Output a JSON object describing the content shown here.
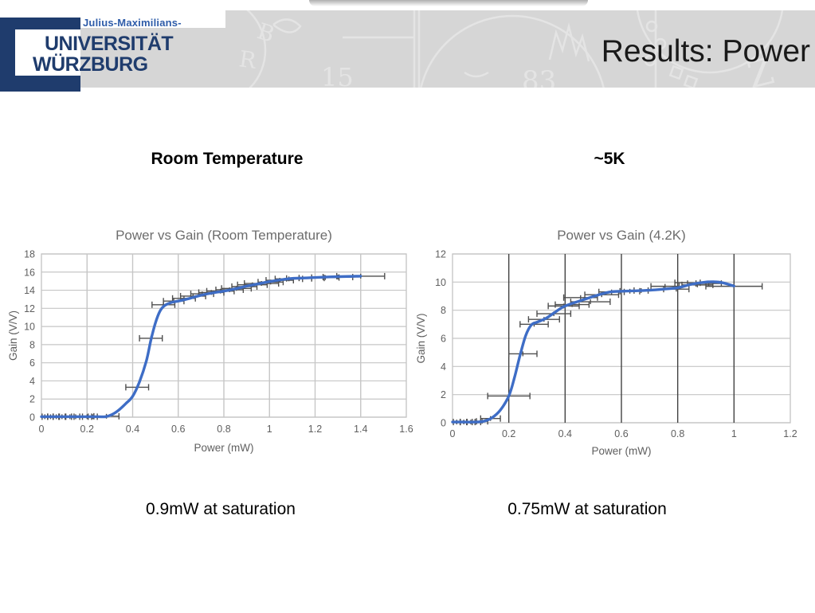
{
  "slide": {
    "title": "Results: Power",
    "logo": {
      "pretitle": "Julius-Maximilians-",
      "line1": "UNIVERSITÄT",
      "line2": "WÜRZBURG"
    },
    "watermark": {
      "num_left": "15",
      "num_right": "83",
      "letters": [
        "B",
        "R",
        "Z"
      ]
    },
    "left_subtitle": "Room Temperature",
    "right_subtitle": "~5K",
    "left_caption": "0.9mW at saturation",
    "right_caption": "0.75mW at saturation",
    "colors": {
      "logo_navy": "#1f3c6d",
      "logo_blue": "#2e5ca9",
      "band_gray": "#d6d6d6",
      "watermark_gray": "#e4e4e4",
      "title_black": "#1a1a1a",
      "line_blue": "#3e6dc6",
      "errorbar_gray": "#4f4f4f",
      "grid_light": "#c6c6c6",
      "grid_dark": "#414141",
      "axis_text_gray": "#5f5f5f",
      "chart_title_gray": "#6d6d6d"
    }
  },
  "chart_data": [
    {
      "type": "line",
      "title": "Power vs Gain (Room Temperature)",
      "xlabel": "Power (mW)",
      "ylabel": "Gain (V/V)",
      "xlim": [
        0,
        1.6
      ],
      "ylim": [
        0,
        18
      ],
      "grid": true,
      "legend": false,
      "xticks": [
        {
          "v": 0,
          "label": "0"
        },
        {
          "v": 0.2,
          "label": "0.2"
        },
        {
          "v": 0.4,
          "label": "0.4"
        },
        {
          "v": 0.6,
          "label": "0.6"
        },
        {
          "v": 0.8,
          "label": "0.8"
        },
        {
          "v": 1,
          "label": "1"
        },
        {
          "v": 1.2,
          "label": "1.2"
        },
        {
          "v": 1.4,
          "label": "1.4"
        },
        {
          "v": 1.6,
          "label": "1.6"
        }
      ],
      "yticks": [
        0,
        2,
        4,
        6,
        8,
        10,
        12,
        14,
        16,
        18
      ],
      "line_color": "#3e6dc6",
      "errorbar_color": "#4f4f4f",
      "grid_v_color": "#c6c6c6",
      "grid_h_color": "#c6c6c6",
      "border_color": "#c2c2c2",
      "title_color": "#6d6d6d",
      "tick_color": "#5f5f5f",
      "points_xye": [
        [
          0.015,
          0.05,
          0.012
        ],
        [
          0.04,
          0.05,
          0.012
        ],
        [
          0.065,
          0.05,
          0.014
        ],
        [
          0.09,
          0.05,
          0.014
        ],
        [
          0.125,
          0.05,
          0.018
        ],
        [
          0.15,
          0.05,
          0.018
        ],
        [
          0.2,
          0.05,
          0.02
        ],
        [
          0.225,
          0.05,
          0.02
        ],
        [
          0.285,
          0.1,
          0.055
        ],
        [
          0.42,
          3.3,
          0.05
        ],
        [
          0.48,
          8.7,
          0.05
        ],
        [
          0.535,
          12.4,
          0.05
        ],
        [
          0.58,
          12.8,
          0.045
        ],
        [
          0.625,
          13.1,
          0.05
        ],
        [
          0.665,
          13.35,
          0.055
        ],
        [
          0.705,
          13.6,
          0.05
        ],
        [
          0.745,
          13.75,
          0.055
        ],
        [
          0.785,
          13.9,
          0.06
        ],
        [
          0.825,
          14.05,
          0.06
        ],
        [
          0.855,
          14.2,
          0.065
        ],
        [
          0.89,
          14.4,
          0.055
        ],
        [
          0.925,
          14.6,
          0.065
        ],
        [
          0.965,
          14.75,
          0.075
        ],
        [
          1.005,
          14.9,
          0.055
        ],
        [
          1.045,
          15.1,
          0.06
        ],
        [
          1.085,
          15.25,
          0.06
        ],
        [
          1.13,
          15.3,
          0.055
        ],
        [
          1.185,
          15.35,
          0.055
        ],
        [
          1.245,
          15.4,
          0.06
        ],
        [
          1.3,
          15.45,
          0.065
        ],
        [
          1.4,
          15.55,
          0.105
        ]
      ],
      "curve": [
        [
          0,
          0.05
        ],
        [
          0.05,
          0.05
        ],
        [
          0.1,
          0.05
        ],
        [
          0.15,
          0.05
        ],
        [
          0.2,
          0.05
        ],
        [
          0.25,
          0.05
        ],
        [
          0.28,
          0.05
        ],
        [
          0.31,
          0.3
        ],
        [
          0.34,
          0.8
        ],
        [
          0.37,
          1.5
        ],
        [
          0.4,
          2.3
        ],
        [
          0.43,
          3.9
        ],
        [
          0.46,
          6.2
        ],
        [
          0.48,
          8.5
        ],
        [
          0.5,
          10.4
        ],
        [
          0.52,
          11.7
        ],
        [
          0.54,
          12.3
        ],
        [
          0.57,
          12.65
        ],
        [
          0.6,
          12.8
        ],
        [
          0.65,
          13.1
        ],
        [
          0.7,
          13.45
        ],
        [
          0.75,
          13.7
        ],
        [
          0.8,
          13.9
        ],
        [
          0.85,
          14.15
        ],
        [
          0.9,
          14.45
        ],
        [
          0.95,
          14.7
        ],
        [
          1,
          14.95
        ],
        [
          1.05,
          15.15
        ],
        [
          1.1,
          15.3
        ],
        [
          1.15,
          15.35
        ],
        [
          1.2,
          15.4
        ],
        [
          1.3,
          15.5
        ],
        [
          1.4,
          15.55
        ]
      ]
    },
    {
      "type": "line",
      "title": "Power vs Gain (4.2K)",
      "xlabel": "Power (mW)",
      "ylabel": "Gain (V/V)",
      "xlim": [
        0,
        1.2
      ],
      "ylim": [
        0,
        12
      ],
      "grid": true,
      "legend": false,
      "xticks": [
        {
          "v": 0,
          "label": "0"
        },
        {
          "v": 0.2,
          "label": "0.2"
        },
        {
          "v": 0.4,
          "label": "0.4"
        },
        {
          "v": 0.6,
          "label": "0.6"
        },
        {
          "v": 0.8,
          "label": "0.8"
        },
        {
          "v": 1,
          "label": "1"
        },
        {
          "v": 1.2,
          "label": "1.2"
        }
      ],
      "yticks": [
        0,
        2,
        4,
        6,
        8,
        10,
        12
      ],
      "line_color": "#3e6dc6",
      "errorbar_color": "#4f4f4f",
      "grid_v_color": "#414141",
      "grid_h_color": "#c6c6c6",
      "border_color": "#c2c2c2",
      "title_color": "#6d6d6d",
      "tick_color": "#5f5f5f",
      "points_xye": [
        [
          0.015,
          0.05,
          0.012
        ],
        [
          0.04,
          0.05,
          0.012
        ],
        [
          0.065,
          0.05,
          0.015
        ],
        [
          0.085,
          0.05,
          0.015
        ],
        [
          0.105,
          0.1,
          0.02
        ],
        [
          0.135,
          0.3,
          0.035
        ],
        [
          0.2,
          1.9,
          0.075
        ],
        [
          0.25,
          4.9,
          0.05
        ],
        [
          0.29,
          7.0,
          0.05
        ],
        [
          0.325,
          7.35,
          0.055
        ],
        [
          0.36,
          7.75,
          0.06
        ],
        [
          0.395,
          8.3,
          0.055
        ],
        [
          0.425,
          8.4,
          0.06
        ],
        [
          0.455,
          8.9,
          0.06
        ],
        [
          0.49,
          8.6,
          0.07
        ],
        [
          0.53,
          9.1,
          0.06
        ],
        [
          0.565,
          9.3,
          0.045
        ],
        [
          0.63,
          9.35,
          0.035
        ],
        [
          0.67,
          9.4,
          0.025
        ],
        [
          0.755,
          9.7,
          0.05
        ],
        [
          0.795,
          9.5,
          0.045
        ],
        [
          0.835,
          9.95,
          0.045
        ],
        [
          0.87,
          9.8,
          0.055
        ],
        [
          0.91,
          9.9,
          0.045
        ],
        [
          1.0,
          9.7,
          0.1
        ]
      ],
      "curve": [
        [
          0,
          0.05
        ],
        [
          0.04,
          0.05
        ],
        [
          0.08,
          0.05
        ],
        [
          0.11,
          0.1
        ],
        [
          0.14,
          0.35
        ],
        [
          0.17,
          0.9
        ],
        [
          0.2,
          1.9
        ],
        [
          0.22,
          3.2
        ],
        [
          0.24,
          4.8
        ],
        [
          0.26,
          6.2
        ],
        [
          0.28,
          6.95
        ],
        [
          0.3,
          7.15
        ],
        [
          0.33,
          7.4
        ],
        [
          0.36,
          7.8
        ],
        [
          0.39,
          8.2
        ],
        [
          0.42,
          8.45
        ],
        [
          0.45,
          8.65
        ],
        [
          0.48,
          8.85
        ],
        [
          0.52,
          9.1
        ],
        [
          0.56,
          9.3
        ],
        [
          0.6,
          9.35
        ],
        [
          0.65,
          9.38
        ],
        [
          0.7,
          9.42
        ],
        [
          0.75,
          9.5
        ],
        [
          0.8,
          9.6
        ],
        [
          0.85,
          9.85
        ],
        [
          0.9,
          10.0
        ],
        [
          0.93,
          10.02
        ],
        [
          0.96,
          9.95
        ],
        [
          1.0,
          9.72
        ]
      ]
    }
  ]
}
